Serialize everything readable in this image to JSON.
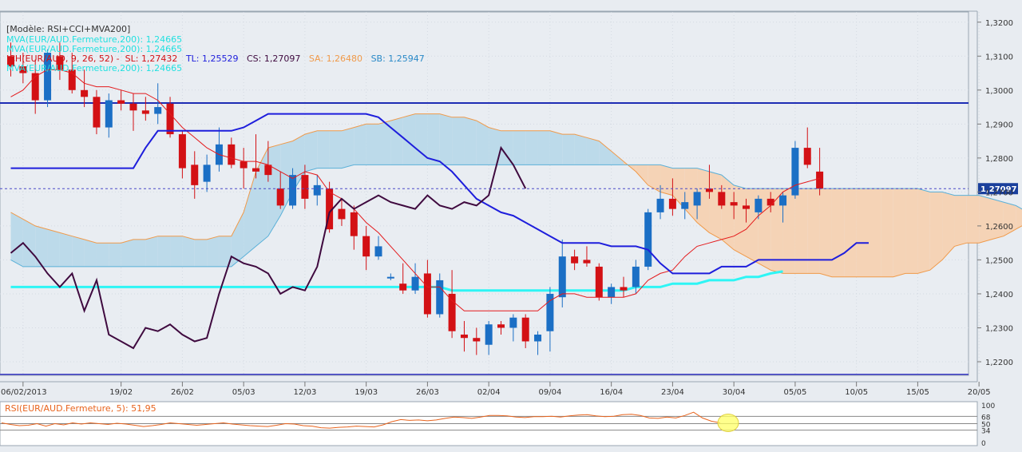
{
  "chart_data": {
    "type": "candlestick",
    "pair": "EUR/AUD",
    "legend": {
      "model": "[Modèle: RSI+CCI+MVA200]",
      "ma_lines": [
        "MVA(EUR/AUD.Fermeture,200): 1,24665",
        "MVA(EUR/AUD.Fermeture,200): 1,24665",
        "MVA(EUR/AUD.Fermeture,200): 1,24665"
      ],
      "ichimoku": {
        "prefix": "ICH(EUR/AUD, 9, 26, 52) -",
        "sl": "SL: 1,27432",
        "tl": "TL: 1,25529",
        "cs": "CS: 1,27097",
        "sa": "SA: 1,26480",
        "sb": "SB: 1,25947"
      }
    },
    "price_axis": {
      "ylim": [
        1.216,
        1.323
      ],
      "ticks": [
        "1,3200",
        "1,3100",
        "1,3000",
        "1,2900",
        "1,2800",
        "1,2700",
        "1,2600",
        "1,2500",
        "1,2400",
        "1,2300",
        "1,2200"
      ],
      "tick_values": [
        1.32,
        1.31,
        1.3,
        1.29,
        1.28,
        1.27,
        1.26,
        1.25,
        1.24,
        1.23,
        1.22
      ],
      "last_price_label": "1,27097",
      "last_price": 1.27097
    },
    "x_axis": {
      "tick_labels": [
        "06/02/2013",
        "19/02",
        "26/02",
        "05/03",
        "12/03",
        "19/03",
        "26/03",
        "02/04",
        "09/04",
        "16/04",
        "23/04",
        "30/04",
        "05/05",
        "10/05",
        "15/05",
        "20/05"
      ],
      "tick_index": [
        1,
        9,
        14,
        19,
        24,
        29,
        34,
        39,
        44,
        49,
        54,
        59,
        64,
        69,
        74,
        79
      ],
      "future_tick_labels": [
        "05/05",
        "10/05",
        "15/05",
        "20/05"
      ]
    },
    "candles": [
      {
        "o": 1.31,
        "h": 1.314,
        "l": 1.304,
        "c": 1.307
      },
      {
        "o": 1.307,
        "h": 1.311,
        "l": 1.302,
        "c": 1.305
      },
      {
        "o": 1.305,
        "h": 1.309,
        "l": 1.293,
        "c": 1.297
      },
      {
        "o": 1.297,
        "h": 1.312,
        "l": 1.295,
        "c": 1.311
      },
      {
        "o": 1.31,
        "h": 1.314,
        "l": 1.303,
        "c": 1.306
      },
      {
        "o": 1.306,
        "h": 1.311,
        "l": 1.299,
        "c": 1.3
      },
      {
        "o": 1.3,
        "h": 1.306,
        "l": 1.295,
        "c": 1.298
      },
      {
        "o": 1.298,
        "h": 1.3,
        "l": 1.287,
        "c": 1.289
      },
      {
        "o": 1.289,
        "h": 1.299,
        "l": 1.286,
        "c": 1.297
      },
      {
        "o": 1.297,
        "h": 1.3,
        "l": 1.294,
        "c": 1.296
      },
      {
        "o": 1.296,
        "h": 1.299,
        "l": 1.288,
        "c": 1.294
      },
      {
        "o": 1.294,
        "h": 1.298,
        "l": 1.291,
        "c": 1.293
      },
      {
        "o": 1.293,
        "h": 1.302,
        "l": 1.29,
        "c": 1.295
      },
      {
        "o": 1.296,
        "h": 1.298,
        "l": 1.286,
        "c": 1.287
      },
      {
        "o": 1.287,
        "h": 1.288,
        "l": 1.274,
        "c": 1.277
      },
      {
        "o": 1.278,
        "h": 1.282,
        "l": 1.268,
        "c": 1.272
      },
      {
        "o": 1.273,
        "h": 1.281,
        "l": 1.27,
        "c": 1.278
      },
      {
        "o": 1.278,
        "h": 1.289,
        "l": 1.276,
        "c": 1.284
      },
      {
        "o": 1.284,
        "h": 1.286,
        "l": 1.277,
        "c": 1.278
      },
      {
        "o": 1.279,
        "h": 1.283,
        "l": 1.271,
        "c": 1.277
      },
      {
        "o": 1.277,
        "h": 1.287,
        "l": 1.274,
        "c": 1.276
      },
      {
        "o": 1.278,
        "h": 1.285,
        "l": 1.273,
        "c": 1.275
      },
      {
        "o": 1.271,
        "h": 1.276,
        "l": 1.265,
        "c": 1.266
      },
      {
        "o": 1.266,
        "h": 1.277,
        "l": 1.265,
        "c": 1.275
      },
      {
        "o": 1.275,
        "h": 1.278,
        "l": 1.265,
        "c": 1.268
      },
      {
        "o": 1.269,
        "h": 1.275,
        "l": 1.266,
        "c": 1.272
      },
      {
        "o": 1.271,
        "h": 1.273,
        "l": 1.258,
        "c": 1.259
      },
      {
        "o": 1.265,
        "h": 1.268,
        "l": 1.26,
        "c": 1.262
      },
      {
        "o": 1.264,
        "h": 1.266,
        "l": 1.253,
        "c": 1.257
      },
      {
        "o": 1.257,
        "h": 1.26,
        "l": 1.247,
        "c": 1.251
      },
      {
        "o": 1.251,
        "h": 1.257,
        "l": 1.25,
        "c": 1.254
      },
      {
        "o": 1.245,
        "h": 1.246,
        "l": 1.244,
        "c": 1.245
      },
      {
        "o": 1.243,
        "h": 1.249,
        "l": 1.24,
        "c": 1.241
      },
      {
        "o": 1.241,
        "h": 1.249,
        "l": 1.24,
        "c": 1.245
      },
      {
        "o": 1.246,
        "h": 1.25,
        "l": 1.233,
        "c": 1.234
      },
      {
        "o": 1.234,
        "h": 1.246,
        "l": 1.233,
        "c": 1.244
      },
      {
        "o": 1.24,
        "h": 1.247,
        "l": 1.227,
        "c": 1.229
      },
      {
        "o": 1.228,
        "h": 1.232,
        "l": 1.223,
        "c": 1.227
      },
      {
        "o": 1.227,
        "h": 1.23,
        "l": 1.222,
        "c": 1.226
      },
      {
        "o": 1.225,
        "h": 1.232,
        "l": 1.222,
        "c": 1.231
      },
      {
        "o": 1.231,
        "h": 1.232,
        "l": 1.228,
        "c": 1.23
      },
      {
        "o": 1.23,
        "h": 1.234,
        "l": 1.226,
        "c": 1.233
      },
      {
        "o": 1.233,
        "h": 1.234,
        "l": 1.224,
        "c": 1.226
      },
      {
        "o": 1.226,
        "h": 1.229,
        "l": 1.222,
        "c": 1.228
      },
      {
        "o": 1.229,
        "h": 1.242,
        "l": 1.223,
        "c": 1.24
      },
      {
        "o": 1.239,
        "h": 1.256,
        "l": 1.236,
        "c": 1.251
      },
      {
        "o": 1.251,
        "h": 1.253,
        "l": 1.247,
        "c": 1.249
      },
      {
        "o": 1.25,
        "h": 1.254,
        "l": 1.248,
        "c": 1.249
      },
      {
        "o": 1.248,
        "h": 1.249,
        "l": 1.238,
        "c": 1.239
      },
      {
        "o": 1.239,
        "h": 1.243,
        "l": 1.237,
        "c": 1.242
      },
      {
        "o": 1.242,
        "h": 1.245,
        "l": 1.239,
        "c": 1.241
      },
      {
        "o": 1.242,
        "h": 1.25,
        "l": 1.24,
        "c": 1.248
      },
      {
        "o": 1.248,
        "h": 1.265,
        "l": 1.247,
        "c": 1.264
      },
      {
        "o": 1.264,
        "h": 1.272,
        "l": 1.262,
        "c": 1.268
      },
      {
        "o": 1.268,
        "h": 1.274,
        "l": 1.263,
        "c": 1.265
      },
      {
        "o": 1.265,
        "h": 1.27,
        "l": 1.262,
        "c": 1.267
      },
      {
        "o": 1.266,
        "h": 1.271,
        "l": 1.262,
        "c": 1.27
      },
      {
        "o": 1.271,
        "h": 1.278,
        "l": 1.268,
        "c": 1.27
      },
      {
        "o": 1.27,
        "h": 1.272,
        "l": 1.265,
        "c": 1.266
      },
      {
        "o": 1.267,
        "h": 1.27,
        "l": 1.262,
        "c": 1.266
      },
      {
        "o": 1.266,
        "h": 1.268,
        "l": 1.261,
        "c": 1.265
      },
      {
        "o": 1.264,
        "h": 1.269,
        "l": 1.262,
        "c": 1.268
      },
      {
        "o": 1.268,
        "h": 1.27,
        "l": 1.264,
        "c": 1.266
      },
      {
        "o": 1.266,
        "h": 1.27,
        "l": 1.261,
        "c": 1.269
      },
      {
        "o": 1.269,
        "h": 1.285,
        "l": 1.268,
        "c": 1.283
      },
      {
        "o": 1.283,
        "h": 1.289,
        "l": 1.277,
        "c": 1.278
      },
      {
        "o": 1.276,
        "h": 1.283,
        "l": 1.269,
        "c": 1.271
      }
    ],
    "tenkan": {
      "name": "SL",
      "start": 0,
      "values": [
        1.298,
        1.3,
        1.304,
        1.306,
        1.306,
        1.305,
        1.302,
        1.301,
        1.301,
        1.3,
        1.299,
        1.299,
        1.297,
        1.293,
        1.289,
        1.286,
        1.283,
        1.281,
        1.28,
        1.279,
        1.279,
        1.278,
        1.276,
        1.274,
        1.276,
        1.275,
        1.27,
        1.268,
        1.265,
        1.261,
        1.258,
        1.254,
        1.25,
        1.246,
        1.242,
        1.242,
        1.238,
        1.235,
        1.235,
        1.235,
        1.235,
        1.235,
        1.235,
        1.235,
        1.238,
        1.24,
        1.24,
        1.239,
        1.239,
        1.239,
        1.239,
        1.24,
        1.244,
        1.246,
        1.247,
        1.251,
        1.254,
        1.255,
        1.256,
        1.257,
        1.259,
        1.263,
        1.266,
        1.27,
        1.272,
        1.273,
        1.274
      ]
    },
    "kijun": {
      "name": "TL",
      "start": 0,
      "values": [
        1.277,
        1.277,
        1.277,
        1.277,
        1.277,
        1.277,
        1.277,
        1.277,
        1.277,
        1.277,
        1.277,
        1.283,
        1.288,
        1.288,
        1.288,
        1.288,
        1.288,
        1.288,
        1.288,
        1.289,
        1.291,
        1.293,
        1.293,
        1.293,
        1.293,
        1.293,
        1.293,
        1.293,
        1.293,
        1.293,
        1.292,
        1.289,
        1.286,
        1.283,
        1.28,
        1.279,
        1.276,
        1.272,
        1.268,
        1.266,
        1.264,
        1.263,
        1.261,
        1.259,
        1.257,
        1.255,
        1.255,
        1.255,
        1.255,
        1.254,
        1.254,
        1.254,
        1.253,
        1.249,
        1.246,
        1.246,
        1.246,
        1.246,
        1.248,
        1.248,
        1.248,
        1.25,
        1.25,
        1.25,
        1.25,
        1.25,
        1.25,
        1.25,
        1.252,
        1.255,
        1.255
      ]
    },
    "chikou": {
      "name": "CS",
      "start": 0,
      "values": [
        1.252,
        1.255,
        1.251,
        1.246,
        1.242,
        1.246,
        1.235,
        1.244,
        1.228,
        1.226,
        1.224,
        1.23,
        1.229,
        1.231,
        1.228,
        1.226,
        1.227,
        1.24,
        1.251,
        1.249,
        1.248,
        1.246,
        1.24,
        1.242,
        1.241,
        1.248,
        1.264,
        1.268,
        1.265,
        1.267,
        1.269,
        1.267,
        1.266,
        1.265,
        1.269,
        1.266,
        1.265,
        1.267,
        1.266,
        1.269,
        1.283,
        1.278,
        1.271
      ]
    },
    "senkou_a": {
      "name": "SA",
      "start": 0,
      "values": [
        1.264,
        1.262,
        1.26,
        1.259,
        1.258,
        1.257,
        1.256,
        1.255,
        1.255,
        1.255,
        1.256,
        1.256,
        1.257,
        1.257,
        1.257,
        1.256,
        1.256,
        1.257,
        1.257,
        1.264,
        1.276,
        1.283,
        1.284,
        1.285,
        1.287,
        1.288,
        1.288,
        1.288,
        1.289,
        1.29,
        1.29,
        1.291,
        1.292,
        1.293,
        1.293,
        1.293,
        1.292,
        1.292,
        1.291,
        1.289,
        1.288,
        1.288,
        1.288,
        1.288,
        1.288,
        1.287,
        1.287,
        1.286,
        1.285,
        1.282,
        1.279,
        1.276,
        1.272,
        1.27,
        1.269,
        1.265,
        1.261,
        1.258,
        1.256,
        1.253,
        1.251,
        1.249,
        1.247,
        1.246,
        1.246,
        1.246,
        1.246,
        1.245,
        1.245,
        1.245,
        1.245,
        1.245,
        1.245,
        1.246,
        1.246,
        1.247,
        1.25,
        1.254,
        1.255,
        1.255,
        1.256,
        1.257,
        1.259,
        1.261
      ]
    },
    "senkou_b": {
      "name": "SB",
      "start": 0,
      "values": [
        1.25,
        1.248,
        1.248,
        1.248,
        1.248,
        1.248,
        1.248,
        1.248,
        1.248,
        1.248,
        1.248,
        1.248,
        1.248,
        1.248,
        1.248,
        1.248,
        1.248,
        1.248,
        1.248,
        1.251,
        1.254,
        1.257,
        1.263,
        1.27,
        1.276,
        1.277,
        1.277,
        1.277,
        1.278,
        1.278,
        1.278,
        1.278,
        1.278,
        1.278,
        1.278,
        1.278,
        1.278,
        1.278,
        1.278,
        1.278,
        1.278,
        1.278,
        1.278,
        1.278,
        1.278,
        1.278,
        1.278,
        1.278,
        1.278,
        1.278,
        1.278,
        1.278,
        1.278,
        1.278,
        1.277,
        1.277,
        1.277,
        1.276,
        1.275,
        1.272,
        1.271,
        1.271,
        1.271,
        1.271,
        1.271,
        1.271,
        1.271,
        1.271,
        1.271,
        1.271,
        1.271,
        1.271,
        1.271,
        1.271,
        1.271,
        1.27,
        1.27,
        1.269,
        1.269,
        1.269,
        1.268,
        1.267,
        1.266,
        1.264
      ]
    },
    "ma200": {
      "name": "MVA200",
      "start": 0,
      "values": [
        1.242,
        1.242,
        1.242,
        1.242,
        1.242,
        1.242,
        1.242,
        1.242,
        1.242,
        1.242,
        1.242,
        1.242,
        1.242,
        1.242,
        1.242,
        1.242,
        1.242,
        1.242,
        1.242,
        1.242,
        1.242,
        1.242,
        1.242,
        1.242,
        1.242,
        1.242,
        1.242,
        1.242,
        1.242,
        1.242,
        1.242,
        1.242,
        1.242,
        1.242,
        1.242,
        1.242,
        1.241,
        1.241,
        1.241,
        1.241,
        1.241,
        1.241,
        1.241,
        1.241,
        1.241,
        1.241,
        1.241,
        1.241,
        1.241,
        1.241,
        1.241,
        1.242,
        1.242,
        1.242,
        1.243,
        1.243,
        1.243,
        1.244,
        1.244,
        1.244,
        1.245,
        1.245,
        1.246,
        1.2466
      ]
    },
    "horizontal_lines": [
      {
        "value": 1.2962,
        "color": "#1e2db4"
      },
      {
        "value": 1.2163,
        "color": "#3e3ec8"
      }
    ],
    "rsi": {
      "label": "RSI(EUR/AUD.Fermeture, 5): 51,95",
      "levels": [
        "100",
        "68",
        "50",
        "34",
        "0"
      ],
      "level_values": [
        100,
        68,
        50,
        34,
        0
      ],
      "ylim": [
        0,
        100
      ],
      "values": [
        52,
        48,
        45,
        46,
        50,
        44,
        50,
        47,
        52,
        49,
        52,
        50,
        48,
        51,
        49,
        46,
        43,
        45,
        48,
        52,
        50,
        48,
        46,
        48,
        50,
        52,
        49,
        47,
        45,
        44,
        43,
        46,
        50,
        49,
        45,
        44,
        40,
        39,
        41,
        42,
        44,
        43,
        42,
        47,
        55,
        60,
        58,
        59,
        57,
        59,
        63,
        66,
        65,
        63,
        66,
        70,
        70,
        69,
        66,
        65,
        67,
        67,
        68,
        66,
        69,
        71,
        72,
        69,
        67,
        68,
        72,
        73,
        70,
        64,
        63,
        66,
        64,
        70,
        78,
        64,
        56,
        52
      ]
    },
    "colors": {
      "background": "#e8ecf1",
      "bull": "#1b6fc5",
      "bear": "#d31115",
      "tenkan": "#e41a1c",
      "kijun": "#1e1edc",
      "chikou": "#3f0a3f",
      "ma200": "#2ef5f5",
      "cloud_bull": "#bcdaea",
      "cloud_bear": "#f5d3b6",
      "senkou_a": "#f09a4a",
      "senkou_b": "#5ab0d8",
      "rsi_line": "#e8641e",
      "legend_model": "#333333",
      "legend_ma": "#22e0e0",
      "legend_ich": "#d31115",
      "legend_tl": "#1e1edc",
      "legend_cs": "#3f0a3f",
      "legend_sa": "#f09a4a",
      "legend_sb": "#2a8ac8"
    }
  }
}
